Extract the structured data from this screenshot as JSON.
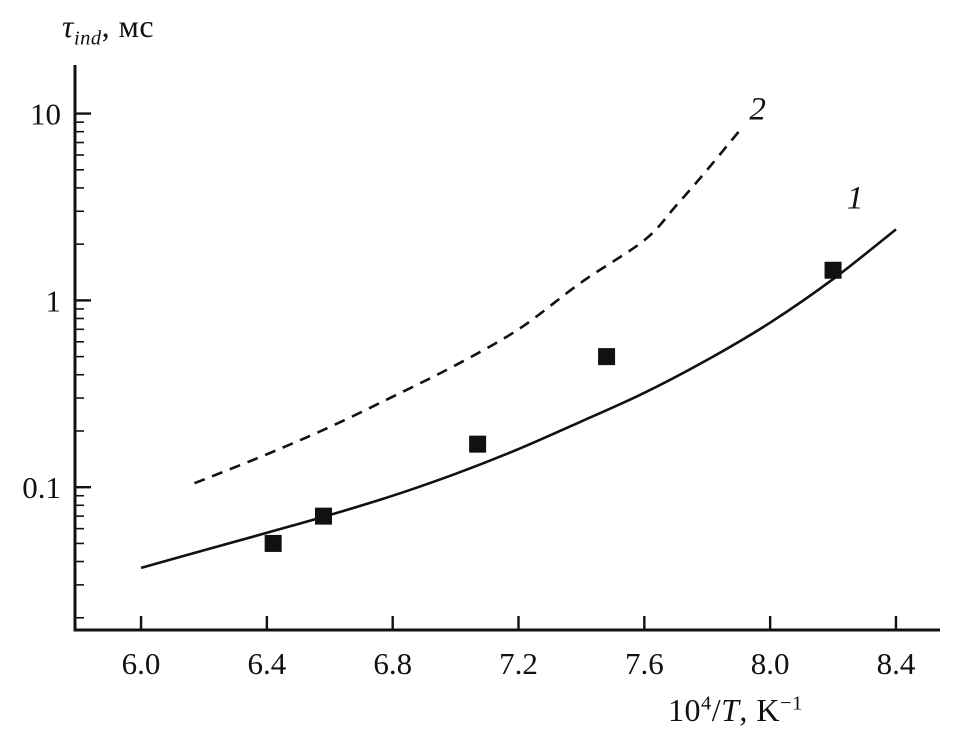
{
  "colors": {
    "ink": "#111111",
    "background": "#ffffff"
  },
  "labels": {
    "y": {
      "tau": "τ",
      "sub": "ind",
      "rest": ", мс"
    },
    "x": {
      "base": "10",
      "exp": "4",
      "slash": "/",
      "tvar": "T",
      "comma_k": ", K",
      "exp2": "−1"
    }
  },
  "chart_data": {
    "type": "line",
    "title": "",
    "xlabel": "10^4/T, K^-1",
    "ylabel": "tau_ind, мс (induction time, ms)",
    "x_scale": "linear",
    "y_scale": "log",
    "grid": false,
    "legend": "inline-curve-labels",
    "x_range": [
      5.79,
      8.54
    ],
    "y_range": [
      0.0172,
      18.2
    ],
    "x_ticks": [
      {
        "value": 6.0,
        "label": "6.0"
      },
      {
        "value": 6.4,
        "label": "6.4"
      },
      {
        "value": 6.8,
        "label": "6.8"
      },
      {
        "value": 7.2,
        "label": "7.2"
      },
      {
        "value": 7.6,
        "label": "7.6"
      },
      {
        "value": 8.0,
        "label": "8.0"
      },
      {
        "value": 8.4,
        "label": "8.4"
      }
    ],
    "y_ticks": [
      {
        "value": 0.1,
        "label": "0.1"
      },
      {
        "value": 1,
        "label": "1"
      },
      {
        "value": 10,
        "label": "10"
      }
    ],
    "series": [
      {
        "name": "1",
        "style": "solid",
        "label_at": [
          8.27,
          3.1
        ],
        "x": [
          6.0,
          6.2,
          6.4,
          6.6,
          6.8,
          7.0,
          7.2,
          7.4,
          7.6,
          7.8,
          8.0,
          8.2,
          8.4
        ],
        "y": [
          0.037,
          0.046,
          0.057,
          0.071,
          0.09,
          0.118,
          0.16,
          0.225,
          0.32,
          0.48,
          0.76,
          1.3,
          2.4
        ]
      },
      {
        "name": "2",
        "style": "dashed",
        "label_at": [
          7.96,
          9.3
        ],
        "x": [
          6.17,
          6.4,
          6.6,
          6.8,
          7.0,
          7.2,
          7.4,
          7.6,
          7.7,
          7.8,
          7.9
        ],
        "y": [
          0.105,
          0.15,
          0.21,
          0.305,
          0.45,
          0.7,
          1.25,
          2.1,
          3.2,
          5.0,
          8.0
        ]
      }
    ],
    "scatter": {
      "marker": "filled-square",
      "x": [
        6.42,
        6.58,
        7.07,
        7.48,
        8.2
      ],
      "y": [
        0.05,
        0.07,
        0.17,
        0.5,
        1.45
      ]
    }
  }
}
